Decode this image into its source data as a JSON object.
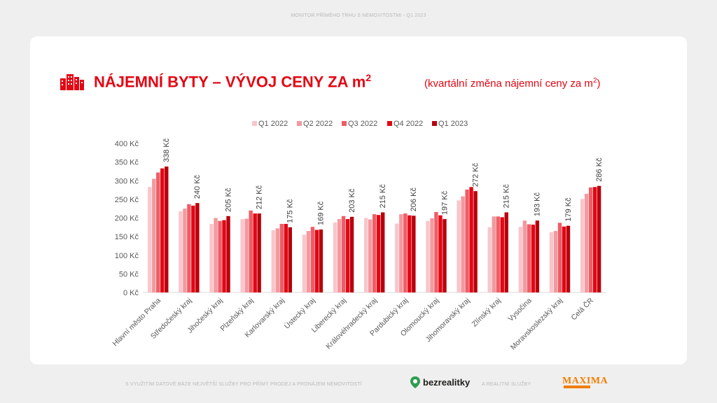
{
  "header": {
    "caption": "MONITOR PŘÍMÉHO TRHU S NEMOVITOSTMI - Q1 2023"
  },
  "title": {
    "main": "NÁJEMNÍ BYTY – VÝVOJ CENY ZA m",
    "main_sup": "2",
    "sub": "(kvartální změna nájemní ceny za m",
    "sub_sup": "2",
    "sub_end": ")"
  },
  "icons": {
    "title_icon": "buildings-icon",
    "bez_icon": "location-pin-icon"
  },
  "footer": {
    "left_text": "S VYUŽITÍM DATOVÉ BÁZE NEJVĚTŠÍ SLUŽBY PRO PŘÍMÝ PRODEJ A PRONÁJEM NEMOVITOSTÍ",
    "brand1": "bezrealitky",
    "middle_text": "A REALITNÍ SLUŽBY",
    "brand2": "MAXIMA"
  },
  "colors": {
    "accent": "#e30613",
    "series": [
      "#f8c6cb",
      "#f4999f",
      "#ee5d66",
      "#e30613",
      "#b8000c"
    ]
  },
  "chart_data": {
    "type": "bar",
    "categories": [
      "Hlavní město Praha",
      "Středočeský kraj",
      "Jihočeský kraj",
      "Plzeňský kraj",
      "Karlovarský kraj",
      "Ústecký kraj",
      "Liberecký kraj",
      "Královéhradecký kraj",
      "Pardubický kraj",
      "Olomoucký kraj",
      "Jihomoravský kraj",
      "Zlínský kraj",
      "Vysočina",
      "Moravskoslezský kraj",
      "Celá ČR"
    ],
    "series": [
      {
        "name": "Q1 2022",
        "values": [
          283,
          218,
          184,
          197,
          167,
          155,
          188,
          200,
          185,
          192,
          247,
          175,
          176,
          162,
          251
        ]
      },
      {
        "name": "Q2 2022",
        "values": [
          305,
          225,
          200,
          198,
          172,
          165,
          197,
          196,
          210,
          199,
          258,
          204,
          193,
          165,
          265
        ]
      },
      {
        "name": "Q3 2022",
        "values": [
          322,
          237,
          192,
          220,
          184,
          176,
          205,
          210,
          212,
          216,
          276,
          204,
          183,
          187,
          282
        ]
      },
      {
        "name": "Q4 2022",
        "values": [
          333,
          233,
          194,
          212,
          184,
          168,
          197,
          208,
          207,
          207,
          283,
          202,
          182,
          177,
          283
        ]
      },
      {
        "name": "Q1 2023",
        "values": [
          338,
          240,
          205,
          212,
          175,
          169,
          203,
          215,
          206,
          197,
          272,
          215,
          193,
          179,
          286
        ]
      }
    ],
    "data_labels": [
      "338 Kč",
      "240 Kč",
      "205 Kč",
      "212 Kč",
      "175 Kč",
      "169 Kč",
      "203 Kč",
      "215 Kč",
      "206 Kč",
      "197 Kč",
      "272 Kč",
      "215 Kč",
      "193 Kč",
      "179 Kč",
      "286 Kč"
    ],
    "y_ticks": [
      0,
      50,
      100,
      150,
      200,
      250,
      300,
      350,
      400
    ],
    "y_tick_suffix": " Kč",
    "ylim": [
      0,
      400
    ],
    "legend_position": "top-center",
    "grid": false
  }
}
